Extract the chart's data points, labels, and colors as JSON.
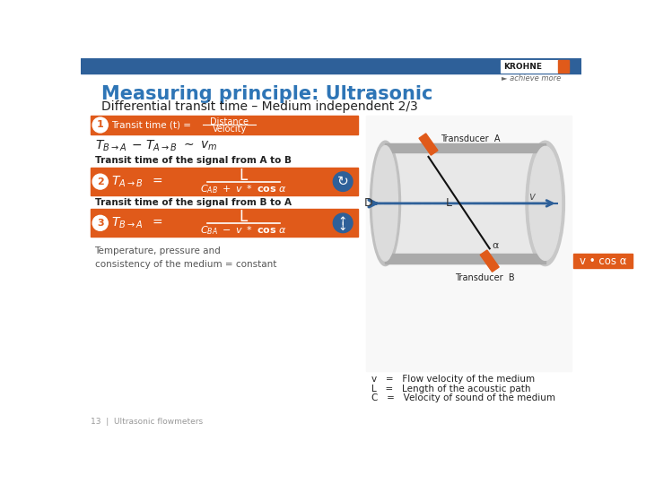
{
  "title_line1": "Measuring principle: Ultrasonic",
  "title_line2": "Differential transit time – Medium independent 2/3",
  "title_color": "#2e75b6",
  "subtitle_color": "#333333",
  "header_bar_color": "#2e6099",
  "orange_color": "#e05a1a",
  "dark_text": "#222222",
  "white": "#ffffff",
  "bg_color": "#ffffff",
  "footer": "13  |  Ultrasonic flowmeters",
  "krohne_text": "KROHNE",
  "achieve_text": "► achieve more",
  "step1_label": "Transit time (t) =",
  "step1_num": "Distance",
  "step1_den": "Velocity",
  "transit_ab_label": "Transit time of the signal from A to B",
  "transit_ba_label": "Transit time of the signal from B to A",
  "note": "Temperature, pressure and\nconsistency of the medium = constant",
  "transducer_a": "Transducer  A",
  "transducer_b": "Transducer  B",
  "label_v": "v",
  "label_L": "L",
  "label_D": "D",
  "label_alpha": "α",
  "vcos_label": "v • cos α",
  "legend_v": "v   =   Flow velocity of the medium",
  "legend_L": "L   =   Length of the acoustic path",
  "legend_C": "C   =   Velocity of sound of the medium"
}
